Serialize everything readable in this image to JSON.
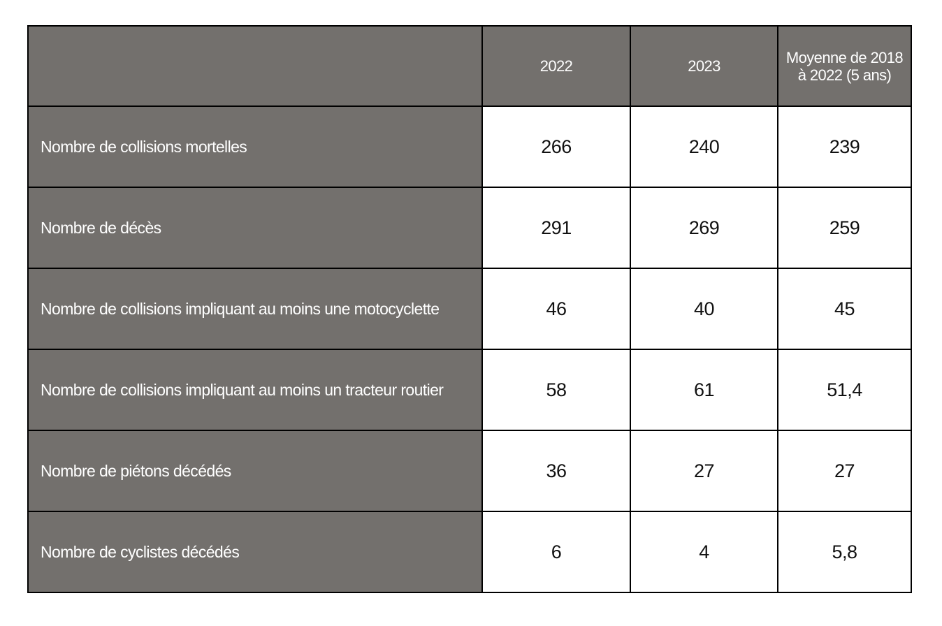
{
  "table": {
    "headers": [
      "",
      "2022",
      "2023",
      "Moyenne de 2018 à 2022 (5 ans)"
    ],
    "rows": [
      {
        "label": "Nombre de collisions mortelles",
        "values": [
          "266",
          "240",
          "239"
        ]
      },
      {
        "label": "Nombre de décès",
        "values": [
          "291",
          "269",
          "259"
        ]
      },
      {
        "label": "Nombre de collisions impliquant au moins une motocyclette",
        "values": [
          "46",
          "40",
          "45"
        ]
      },
      {
        "label": "Nombre de collisions impliquant au moins un tracteur routier",
        "values": [
          "58",
          "61",
          "51,4"
        ]
      },
      {
        "label": "Nombre de piétons décédés",
        "values": [
          "36",
          "27",
          "27"
        ]
      },
      {
        "label": "Nombre de cyclistes décédés",
        "values": [
          "6",
          "4",
          "5,8"
        ]
      }
    ]
  },
  "colors": {
    "header_bg": "#73706d",
    "header_text": "#ffffff",
    "border": "#000000",
    "cell_bg": "#ffffff"
  }
}
